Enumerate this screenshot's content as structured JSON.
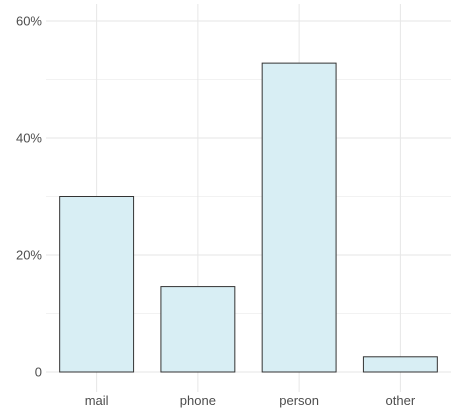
{
  "chart_data": {
    "type": "bar",
    "title": "",
    "xlabel": "",
    "ylabel": "",
    "categories": [
      "mail",
      "phone",
      "person",
      "other"
    ],
    "values": [
      30,
      14.6,
      52.8,
      2.6
    ],
    "y_unit": "%",
    "ylim": [
      0,
      60
    ],
    "y_ticks": [
      0,
      20,
      40,
      60
    ],
    "y_tick_labels": [
      "0",
      "20%",
      "40%",
      "60%"
    ],
    "grid": true,
    "bar_fill": "#d8eef4",
    "bar_outline": "#333333"
  }
}
